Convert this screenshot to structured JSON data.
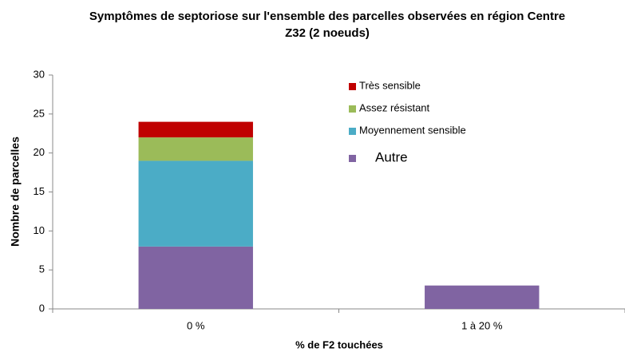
{
  "chart_data": {
    "type": "stacked_bar",
    "title": "Symptômes de septoriose sur l'ensemble des parcelles observées en région Centre",
    "subtitle": "Z32 (2 noeuds)",
    "x_label": "% de F2 touchées",
    "y_label": "Nombre de parcelles",
    "categories": [
      "0 %",
      "1 à 20 %"
    ],
    "series": [
      {
        "name": "Autre",
        "color": "#8064a2",
        "values": [
          8,
          3
        ]
      },
      {
        "name": "Moyennement sensible",
        "color": "#4bacc6",
        "values": [
          11,
          0
        ]
      },
      {
        "name": "Assez résistant",
        "color": "#9bbb59",
        "values": [
          3,
          0
        ]
      },
      {
        "name": "Très sensible",
        "color": "#c00000",
        "values": [
          2,
          0
        ]
      }
    ],
    "ylim": [
      0,
      30
    ],
    "yticks": [
      0,
      5,
      10,
      15,
      20,
      25,
      30
    ],
    "grid": false,
    "legend": "top-right"
  }
}
